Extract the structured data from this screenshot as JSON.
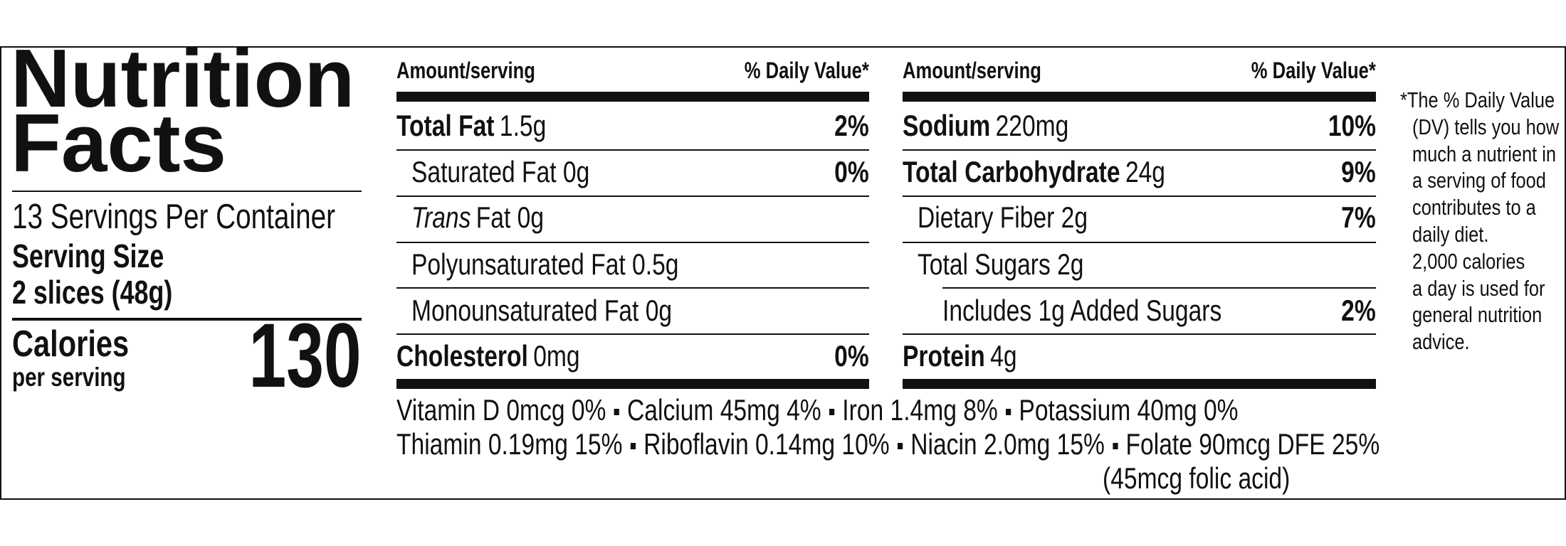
{
  "header": {
    "title_line1": "Nutrition",
    "title_line2": "Facts",
    "servings": "13 Servings Per Container",
    "serving_size_label": "Serving Size",
    "serving_size": "2 slices (48g)",
    "calories_label": "Calories",
    "calories_sublabel": "per serving",
    "calories": "130"
  },
  "left_table": {
    "amount_header": "Amount/serving",
    "dv_header": "% Daily Value*",
    "rows": [
      {
        "nutrient": "Total Fat",
        "amount": "1.5g",
        "dv": "2%"
      },
      {
        "label": "Saturated Fat 0g",
        "dv": "0%"
      },
      {
        "italic": "Trans",
        "label": "Fat 0g"
      },
      {
        "label": "Polyunsaturated Fat 0.5g"
      },
      {
        "label": "Monounsaturated Fat 0g"
      },
      {
        "nutrient": "Cholesterol",
        "amount": "0mg",
        "dv": "0%"
      }
    ]
  },
  "right_table": {
    "amount_header": "Amount/serving",
    "dv_header": "% Daily Value*",
    "rows": [
      {
        "nutrient": "Sodium",
        "amount": "220mg",
        "dv": "10%"
      },
      {
        "nutrient": "Total Carbohydrate",
        "amount": "24g",
        "dv": "9%"
      },
      {
        "label": "Dietary Fiber 2g",
        "dv": "7%"
      },
      {
        "label": "Total Sugars 2g"
      },
      {
        "label": "Includes 1g Added Sugars",
        "dv": "2%"
      },
      {
        "nutrient": "Protein",
        "amount": "4g"
      }
    ]
  },
  "micronutrients": {
    "line1": [
      "Vitamin D 0mcg 0%",
      "Calcium 45mg 4%",
      "Iron 1.4mg 8%",
      "Potassium 40mg 0%"
    ],
    "line2": [
      "Thiamin 0.19mg 15%",
      "Riboflavin 0.14mg 10%",
      "Niacin 2.0mg 15%",
      "Folate 90mcg DFE 25%"
    ],
    "folate_note": "(45mcg folic acid)"
  },
  "footnote": [
    "*The % Daily Value",
    "(DV) tells you how",
    "much a nutrient in",
    "a serving of food",
    "contributes to a",
    "daily diet.",
    "2,000 calories",
    "a day is used for",
    "general nutrition",
    "advice."
  ]
}
